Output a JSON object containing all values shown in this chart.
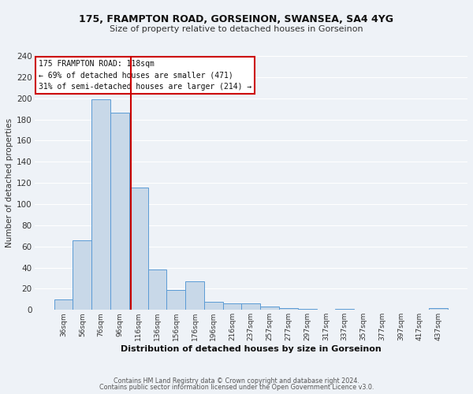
{
  "title": "175, FRAMPTON ROAD, GORSEINON, SWANSEA, SA4 4YG",
  "subtitle": "Size of property relative to detached houses in Gorseinon",
  "xlabel": "Distribution of detached houses by size in Gorseinon",
  "ylabel": "Number of detached properties",
  "bar_labels": [
    "36sqm",
    "56sqm",
    "76sqm",
    "96sqm",
    "116sqm",
    "136sqm",
    "156sqm",
    "176sqm",
    "196sqm",
    "216sqm",
    "237sqm",
    "257sqm",
    "277sqm",
    "297sqm",
    "317sqm",
    "337sqm",
    "357sqm",
    "377sqm",
    "397sqm",
    "417sqm",
    "437sqm"
  ],
  "bar_values": [
    10,
    66,
    199,
    186,
    116,
    38,
    19,
    27,
    8,
    6,
    6,
    3,
    2,
    1,
    0,
    1,
    0,
    0,
    0,
    0,
    2
  ],
  "bar_color": "#c8d8e8",
  "bar_edgecolor": "#5b9bd5",
  "vline_color": "#cc0000",
  "ylim": [
    0,
    240
  ],
  "yticks": [
    0,
    20,
    40,
    60,
    80,
    100,
    120,
    140,
    160,
    180,
    200,
    220,
    240
  ],
  "annotation_title": "175 FRAMPTON ROAD: 118sqm",
  "annotation_line1": "← 69% of detached houses are smaller (471)",
  "annotation_line2": "31% of semi-detached houses are larger (214) →",
  "annotation_box_color": "#cc0000",
  "footer_line1": "Contains HM Land Registry data © Crown copyright and database right 2024.",
  "footer_line2": "Contains public sector information licensed under the Open Government Licence v3.0.",
  "background_color": "#eef2f7",
  "grid_color": "#ffffff"
}
